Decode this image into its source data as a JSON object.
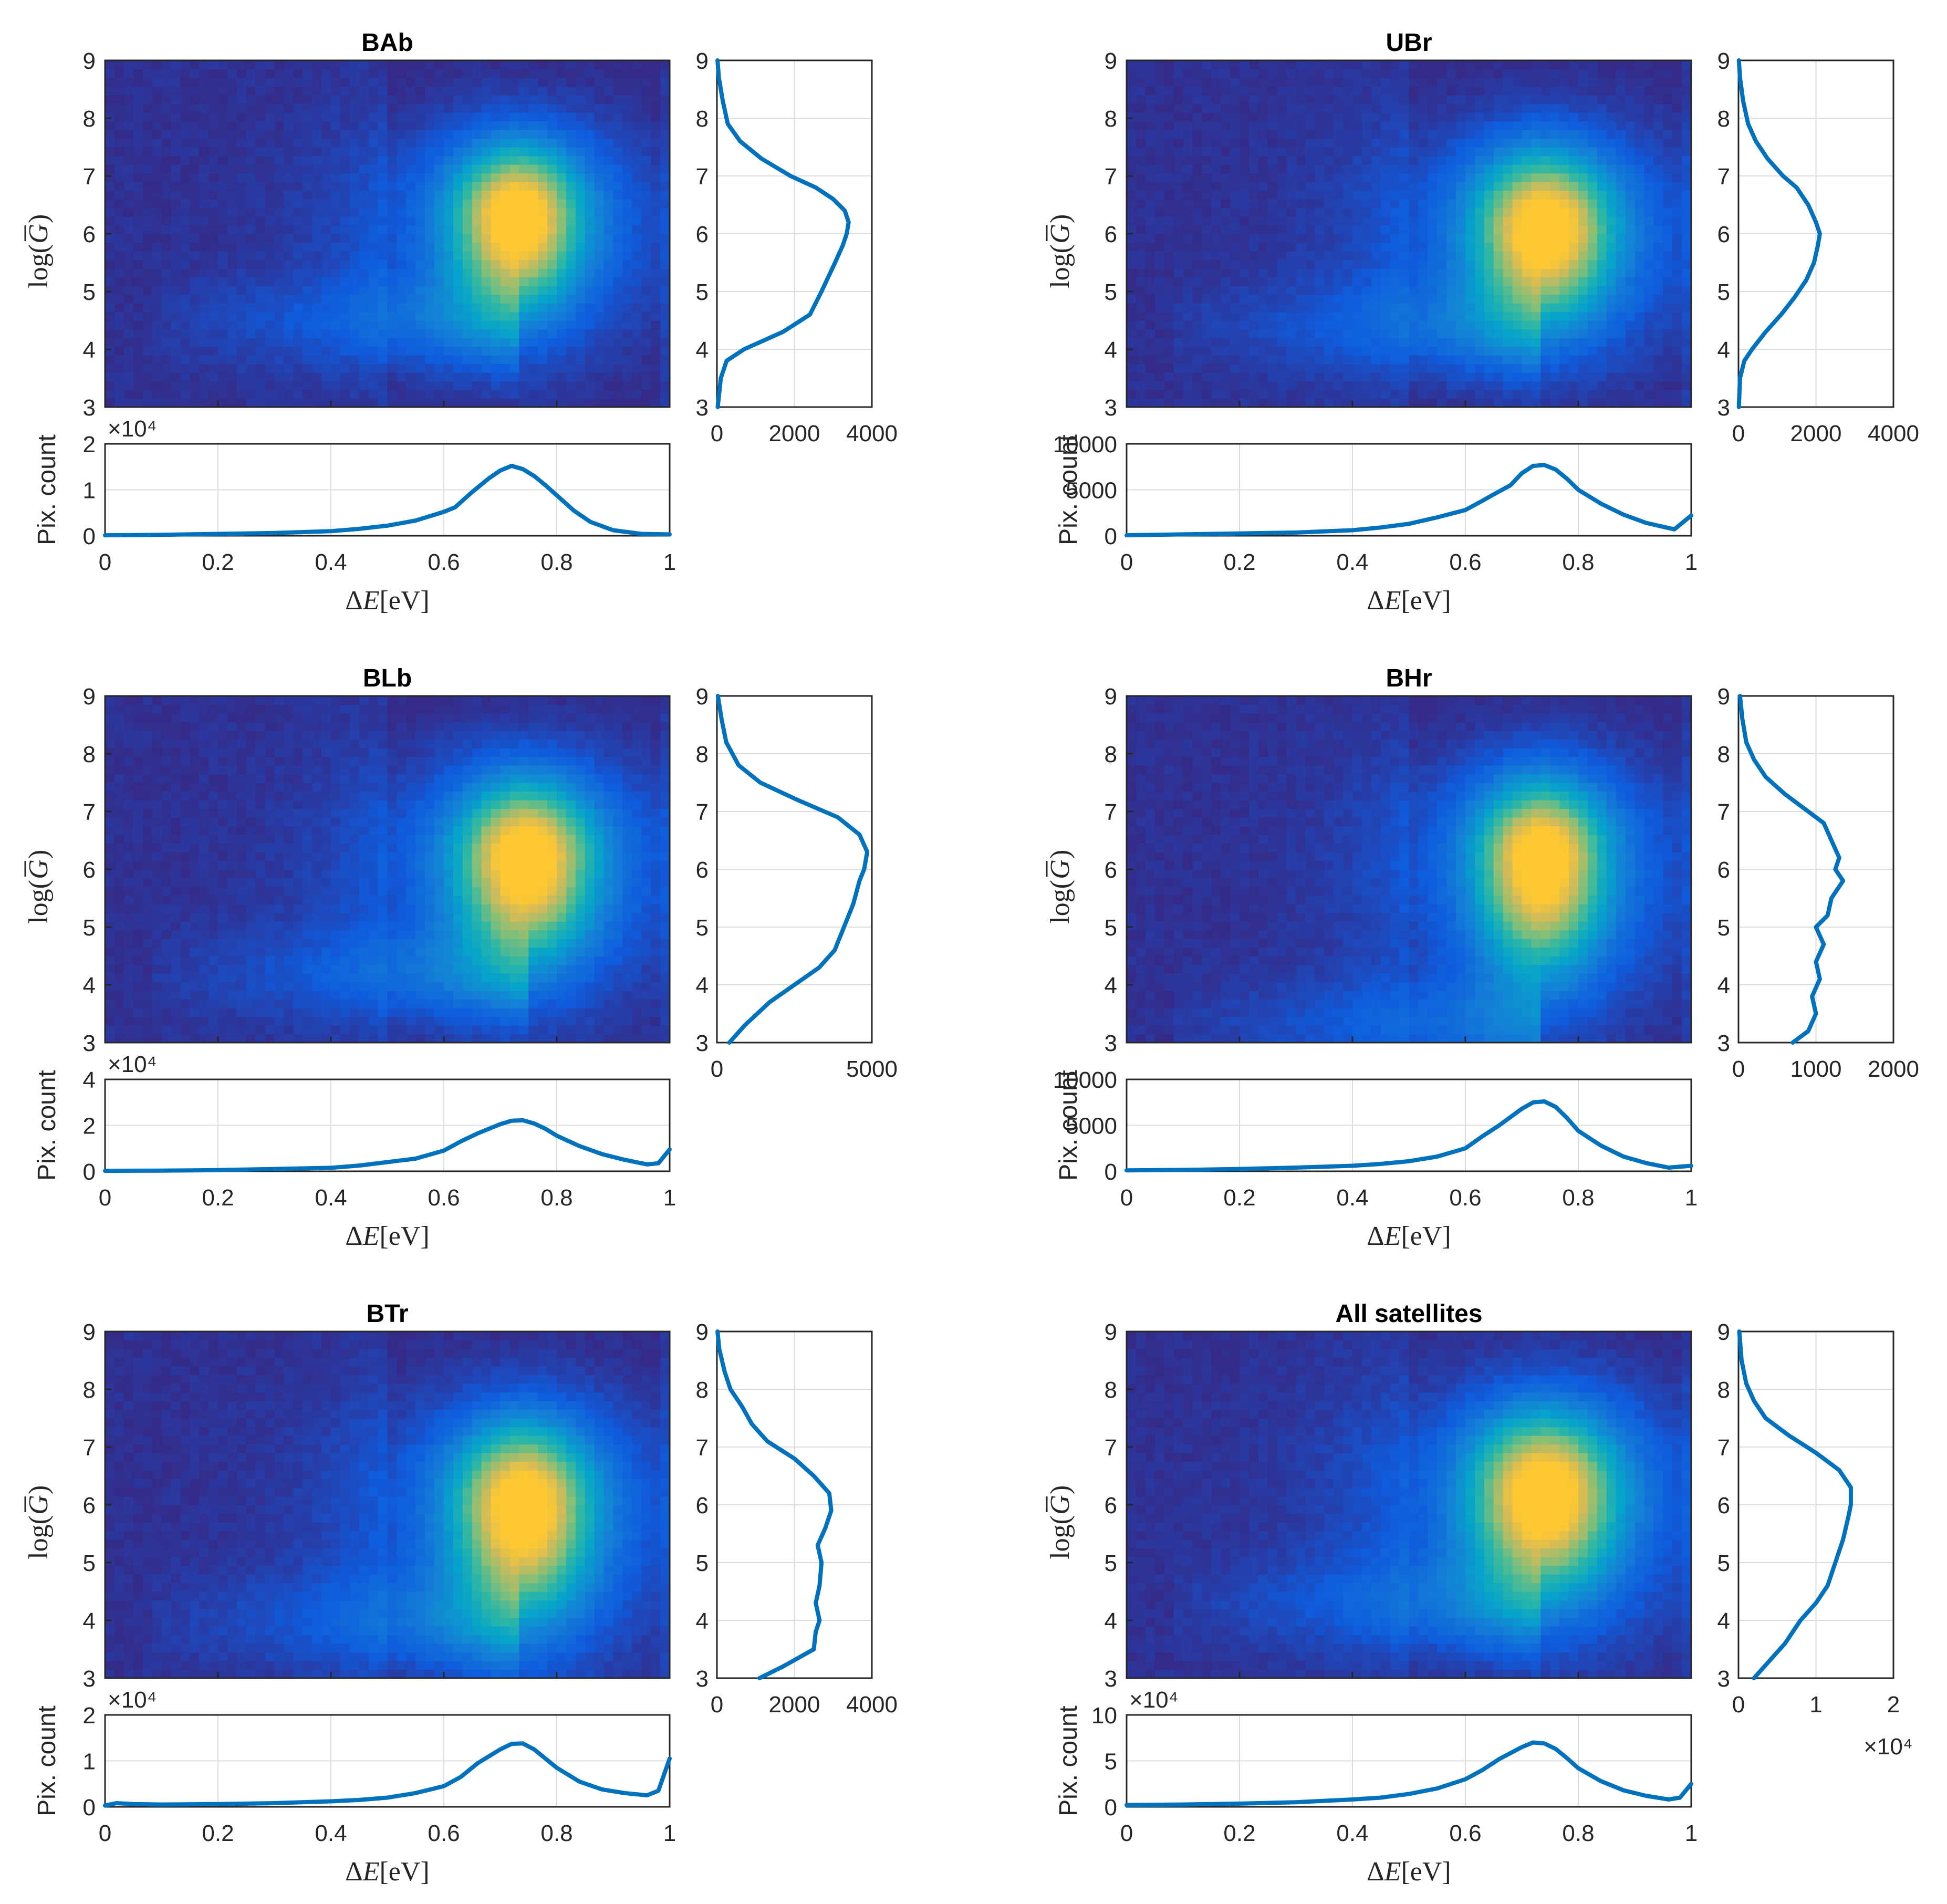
{
  "colors": {
    "curve": "#0072bd",
    "heat_low": "#352a87",
    "heat_mid1": "#0f5cdd",
    "heat_mid2": "#1481d6",
    "heat_mid3": "#06a4ca",
    "heat_mid4": "#2eb7a4",
    "heat_mid5": "#87bf77",
    "heat_mid6": "#d1bb59",
    "heat_high": "#fec832"
  },
  "chart_data": [
    {
      "type": "heatmap",
      "title": "BAb",
      "xlabel": "ΔE[eV]",
      "ylabel": "log(G)",
      "bottom_ylabel": "Pix. count",
      "xlim": [
        0,
        1
      ],
      "ylim": [
        3,
        9
      ],
      "xticks": [
        "0",
        "0.2",
        "0.4",
        "0.6",
        "0.8",
        "1"
      ],
      "yticks": [
        "3",
        "4",
        "5",
        "6",
        "7",
        "8",
        "9"
      ],
      "peak": {
        "x": 0.73,
        "y": 6.3
      },
      "spread": {
        "x": 0.07,
        "y_up": 0.75,
        "y_down": 1.0
      },
      "tail_y": 4.5,
      "bottom": {
        "multiplier": "×10⁴",
        "ylim": [
          0,
          2
        ],
        "yticks": [
          "0",
          "1",
          "2"
        ],
        "x": [
          0,
          0.1,
          0.2,
          0.3,
          0.4,
          0.45,
          0.5,
          0.55,
          0.6,
          0.62,
          0.65,
          0.68,
          0.7,
          0.72,
          0.74,
          0.76,
          0.78,
          0.8,
          0.83,
          0.86,
          0.9,
          0.95,
          1
        ],
        "y": [
          0.01,
          0.02,
          0.04,
          0.06,
          0.1,
          0.15,
          0.22,
          0.33,
          0.52,
          0.62,
          0.95,
          1.25,
          1.42,
          1.52,
          1.45,
          1.3,
          1.1,
          0.88,
          0.55,
          0.3,
          0.12,
          0.04,
          0.03
        ]
      },
      "right": {
        "xlim": [
          0,
          4000
        ],
        "xticks": [
          "0",
          "2000",
          "4000"
        ],
        "y": [
          3,
          3.5,
          3.8,
          4,
          4.3,
          4.6,
          5,
          5.5,
          5.8,
          6,
          6.2,
          6.4,
          6.6,
          6.8,
          7,
          7.3,
          7.6,
          7.9,
          8.3,
          8.7,
          9
        ],
        "x": [
          20,
          100,
          250,
          700,
          1700,
          2400,
          2700,
          3050,
          3250,
          3350,
          3400,
          3300,
          3000,
          2550,
          1900,
          1150,
          600,
          280,
          150,
          50,
          15
        ]
      }
    },
    {
      "type": "heatmap",
      "title": "UBr",
      "xlabel": "ΔE[eV]",
      "ylabel": "log(G)",
      "bottom_ylabel": "Pix. count",
      "xlim": [
        0,
        1
      ],
      "ylim": [
        3,
        9
      ],
      "xticks": [
        "0",
        "0.2",
        "0.4",
        "0.6",
        "0.8",
        "1"
      ],
      "yticks": [
        "3",
        "4",
        "5",
        "6",
        "7",
        "8",
        "9"
      ],
      "peak": {
        "x": 0.74,
        "y": 6.1
      },
      "spread": {
        "x": 0.075,
        "y_up": 0.8,
        "y_down": 1.0
      },
      "tail_y": 4.4,
      "bottom": {
        "multiplier": "",
        "ylim": [
          0,
          10000
        ],
        "yticks": [
          "0",
          "5000",
          "10000"
        ],
        "x": [
          0,
          0.1,
          0.2,
          0.3,
          0.4,
          0.45,
          0.5,
          0.55,
          0.6,
          0.63,
          0.65,
          0.68,
          0.7,
          0.72,
          0.74,
          0.76,
          0.78,
          0.8,
          0.84,
          0.88,
          0.92,
          0.97,
          1
        ],
        "y": [
          50,
          150,
          250,
          350,
          600,
          900,
          1300,
          2000,
          2800,
          3800,
          4500,
          5500,
          6800,
          7600,
          7700,
          7200,
          6200,
          5000,
          3500,
          2300,
          1400,
          700,
          2200
        ]
      },
      "right": {
        "xlim": [
          0,
          4000
        ],
        "xticks": [
          "0",
          "2000",
          "4000"
        ],
        "y": [
          3,
          3.5,
          3.8,
          4,
          4.3,
          4.6,
          4.9,
          5.2,
          5.5,
          5.8,
          6,
          6.2,
          6.5,
          6.8,
          7,
          7.3,
          7.6,
          7.9,
          8.3,
          8.7,
          9
        ],
        "x": [
          10,
          40,
          150,
          350,
          700,
          1100,
          1450,
          1750,
          1950,
          2050,
          2100,
          2000,
          1800,
          1500,
          1150,
          750,
          450,
          250,
          120,
          40,
          10
        ]
      }
    },
    {
      "type": "heatmap",
      "title": "BLb",
      "xlabel": "ΔE[eV]",
      "ylabel": "log(G)",
      "bottom_ylabel": "Pix. count",
      "xlim": [
        0,
        1
      ],
      "ylim": [
        3,
        9
      ],
      "xticks": [
        "0",
        "0.2",
        "0.4",
        "0.6",
        "0.8",
        "1"
      ],
      "yticks": [
        "3",
        "4",
        "5",
        "6",
        "7",
        "8",
        "9"
      ],
      "peak": {
        "x": 0.745,
        "y": 6.2
      },
      "spread": {
        "x": 0.075,
        "y_up": 0.8,
        "y_down": 1.1
      },
      "tail_y": 4.2,
      "bottom": {
        "multiplier": "×10⁴",
        "ylim": [
          0,
          4
        ],
        "yticks": [
          "0",
          "2",
          "4"
        ],
        "x": [
          0,
          0.1,
          0.2,
          0.3,
          0.4,
          0.45,
          0.5,
          0.55,
          0.6,
          0.63,
          0.66,
          0.7,
          0.72,
          0.74,
          0.76,
          0.78,
          0.8,
          0.84,
          0.88,
          0.92,
          0.96,
          0.98,
          1
        ],
        "y": [
          0.02,
          0.03,
          0.05,
          0.1,
          0.15,
          0.25,
          0.4,
          0.55,
          0.9,
          1.3,
          1.65,
          2.05,
          2.2,
          2.22,
          2.08,
          1.85,
          1.55,
          1.1,
          0.75,
          0.5,
          0.3,
          0.35,
          0.95
        ]
      },
      "right": {
        "xlim": [
          0,
          5000
        ],
        "xticks": [
          "0",
          "5000"
        ],
        "y": [
          3,
          3.3,
          3.7,
          4,
          4.3,
          4.6,
          5,
          5.4,
          5.8,
          6,
          6.3,
          6.6,
          6.9,
          7.2,
          7.5,
          7.8,
          8.2,
          8.6,
          9
        ],
        "x": [
          400,
          900,
          1700,
          2500,
          3300,
          3800,
          4100,
          4400,
          4600,
          4750,
          4850,
          4600,
          3900,
          2600,
          1400,
          700,
          300,
          150,
          30
        ]
      }
    },
    {
      "type": "heatmap",
      "title": "BHr",
      "xlabel": "ΔE[eV]",
      "ylabel": "log(G)",
      "bottom_ylabel": "Pix. count",
      "xlim": [
        0,
        1
      ],
      "ylim": [
        3,
        9
      ],
      "xticks": [
        "0",
        "0.2",
        "0.4",
        "0.6",
        "0.8",
        "1"
      ],
      "yticks": [
        "3",
        "4",
        "5",
        "6",
        "7",
        "8",
        "9"
      ],
      "peak": {
        "x": 0.735,
        "y": 6.2
      },
      "spread": {
        "x": 0.07,
        "y_up": 0.8,
        "y_down": 1.2
      },
      "tail_y": 3.3,
      "bottom": {
        "multiplier": "",
        "ylim": [
          0,
          10000
        ],
        "yticks": [
          "0",
          "5000",
          "10000"
        ],
        "x": [
          0,
          0.1,
          0.2,
          0.3,
          0.4,
          0.45,
          0.5,
          0.55,
          0.6,
          0.63,
          0.66,
          0.7,
          0.72,
          0.74,
          0.76,
          0.78,
          0.8,
          0.84,
          0.88,
          0.92,
          0.96,
          1
        ],
        "y": [
          100,
          150,
          250,
          400,
          600,
          800,
          1100,
          1600,
          2500,
          3800,
          5000,
          6800,
          7500,
          7600,
          7000,
          5800,
          4400,
          2800,
          1600,
          900,
          400,
          600
        ]
      },
      "right": {
        "xlim": [
          0,
          2000
        ],
        "xticks": [
          "0",
          "1000",
          "2000"
        ],
        "y": [
          3,
          3.2,
          3.5,
          3.8,
          4.1,
          4.4,
          4.7,
          5,
          5.2,
          5.5,
          5.8,
          6,
          6.2,
          6.5,
          6.8,
          7,
          7.3,
          7.6,
          7.9,
          8.2,
          8.6,
          9
        ],
        "x": [
          700,
          900,
          1000,
          950,
          1050,
          1000,
          1100,
          1000,
          1150,
          1200,
          1350,
          1250,
          1300,
          1200,
          1100,
          900,
          600,
          350,
          200,
          100,
          50,
          20
        ]
      }
    },
    {
      "type": "heatmap",
      "title": "BTr",
      "xlabel": "ΔE[eV]",
      "ylabel": "log(G)",
      "bottom_ylabel": "Pix. count",
      "xlim": [
        0,
        1
      ],
      "ylim": [
        3,
        9
      ],
      "xticks": [
        "0",
        "0.2",
        "0.4",
        "0.6",
        "0.8",
        "1"
      ],
      "yticks": [
        "3",
        "4",
        "5",
        "6",
        "7",
        "8",
        "9"
      ],
      "peak": {
        "x": 0.74,
        "y": 6.0
      },
      "spread": {
        "x": 0.075,
        "y_up": 0.85,
        "y_down": 1.2
      },
      "tail_y": 4.0,
      "bottom": {
        "multiplier": "×10⁴",
        "ylim": [
          0,
          2
        ],
        "yticks": [
          "0",
          "1",
          "2"
        ],
        "x": [
          0,
          0.02,
          0.05,
          0.1,
          0.2,
          0.3,
          0.4,
          0.45,
          0.5,
          0.55,
          0.6,
          0.63,
          0.66,
          0.7,
          0.72,
          0.74,
          0.76,
          0.78,
          0.8,
          0.84,
          0.88,
          0.92,
          0.96,
          0.98,
          1
        ],
        "y": [
          0.03,
          0.08,
          0.06,
          0.05,
          0.06,
          0.08,
          0.12,
          0.15,
          0.2,
          0.3,
          0.45,
          0.65,
          0.95,
          1.25,
          1.37,
          1.38,
          1.25,
          1.05,
          0.85,
          0.55,
          0.38,
          0.3,
          0.25,
          0.35,
          1.05
        ]
      },
      "right": {
        "xlim": [
          0,
          4000
        ],
        "xticks": [
          "0",
          "2000",
          "4000"
        ],
        "y": [
          3,
          3.2,
          3.5,
          3.8,
          4,
          4.3,
          4.6,
          5,
          5.3,
          5.6,
          5.9,
          6.2,
          6.5,
          6.8,
          7.1,
          7.4,
          7.7,
          8,
          8.3,
          8.7,
          9
        ],
        "x": [
          1100,
          1700,
          2500,
          2550,
          2650,
          2550,
          2650,
          2700,
          2600,
          2800,
          2950,
          2900,
          2500,
          2000,
          1300,
          900,
          650,
          350,
          200,
          60,
          15
        ]
      }
    },
    {
      "type": "heatmap",
      "title": "All satellites",
      "xlabel": "ΔE[eV]",
      "ylabel": "log(G)",
      "bottom_ylabel": "Pix. count",
      "xlim": [
        0,
        1
      ],
      "ylim": [
        3,
        9
      ],
      "xticks": [
        "0",
        "0.2",
        "0.4",
        "0.6",
        "0.8",
        "1"
      ],
      "yticks": [
        "3",
        "4",
        "5",
        "6",
        "7",
        "8",
        "9"
      ],
      "peak": {
        "x": 0.74,
        "y": 6.2
      },
      "spread": {
        "x": 0.08,
        "y_up": 0.85,
        "y_down": 1.1
      },
      "tail_y": 4.3,
      "bottom": {
        "multiplier": "×10⁴",
        "ylim": [
          0,
          10
        ],
        "yticks": [
          "0",
          "5",
          "10"
        ],
        "x": [
          0,
          0.1,
          0.2,
          0.3,
          0.4,
          0.45,
          0.5,
          0.55,
          0.6,
          0.63,
          0.66,
          0.7,
          0.72,
          0.74,
          0.76,
          0.78,
          0.8,
          0.84,
          0.88,
          0.92,
          0.96,
          0.98,
          1
        ],
        "y": [
          0.2,
          0.25,
          0.35,
          0.5,
          0.8,
          1.0,
          1.4,
          2.0,
          3.0,
          4.0,
          5.2,
          6.5,
          7.0,
          6.9,
          6.3,
          5.3,
          4.2,
          2.8,
          1.8,
          1.2,
          0.8,
          1.0,
          2.5
        ]
      },
      "right": {
        "xlim": [
          0,
          2
        ],
        "xticks": [
          "0",
          "1",
          "2"
        ],
        "multiplier": "×10⁴",
        "y": [
          3,
          3.3,
          3.6,
          4,
          4.3,
          4.6,
          5,
          5.4,
          5.8,
          6,
          6.3,
          6.6,
          6.9,
          7.2,
          7.5,
          7.8,
          8.1,
          8.5,
          9
        ],
        "x": [
          0.2,
          0.4,
          0.6,
          0.8,
          1.0,
          1.15,
          1.25,
          1.35,
          1.42,
          1.45,
          1.45,
          1.3,
          1.0,
          0.65,
          0.35,
          0.2,
          0.1,
          0.04,
          0.01
        ]
      }
    }
  ]
}
